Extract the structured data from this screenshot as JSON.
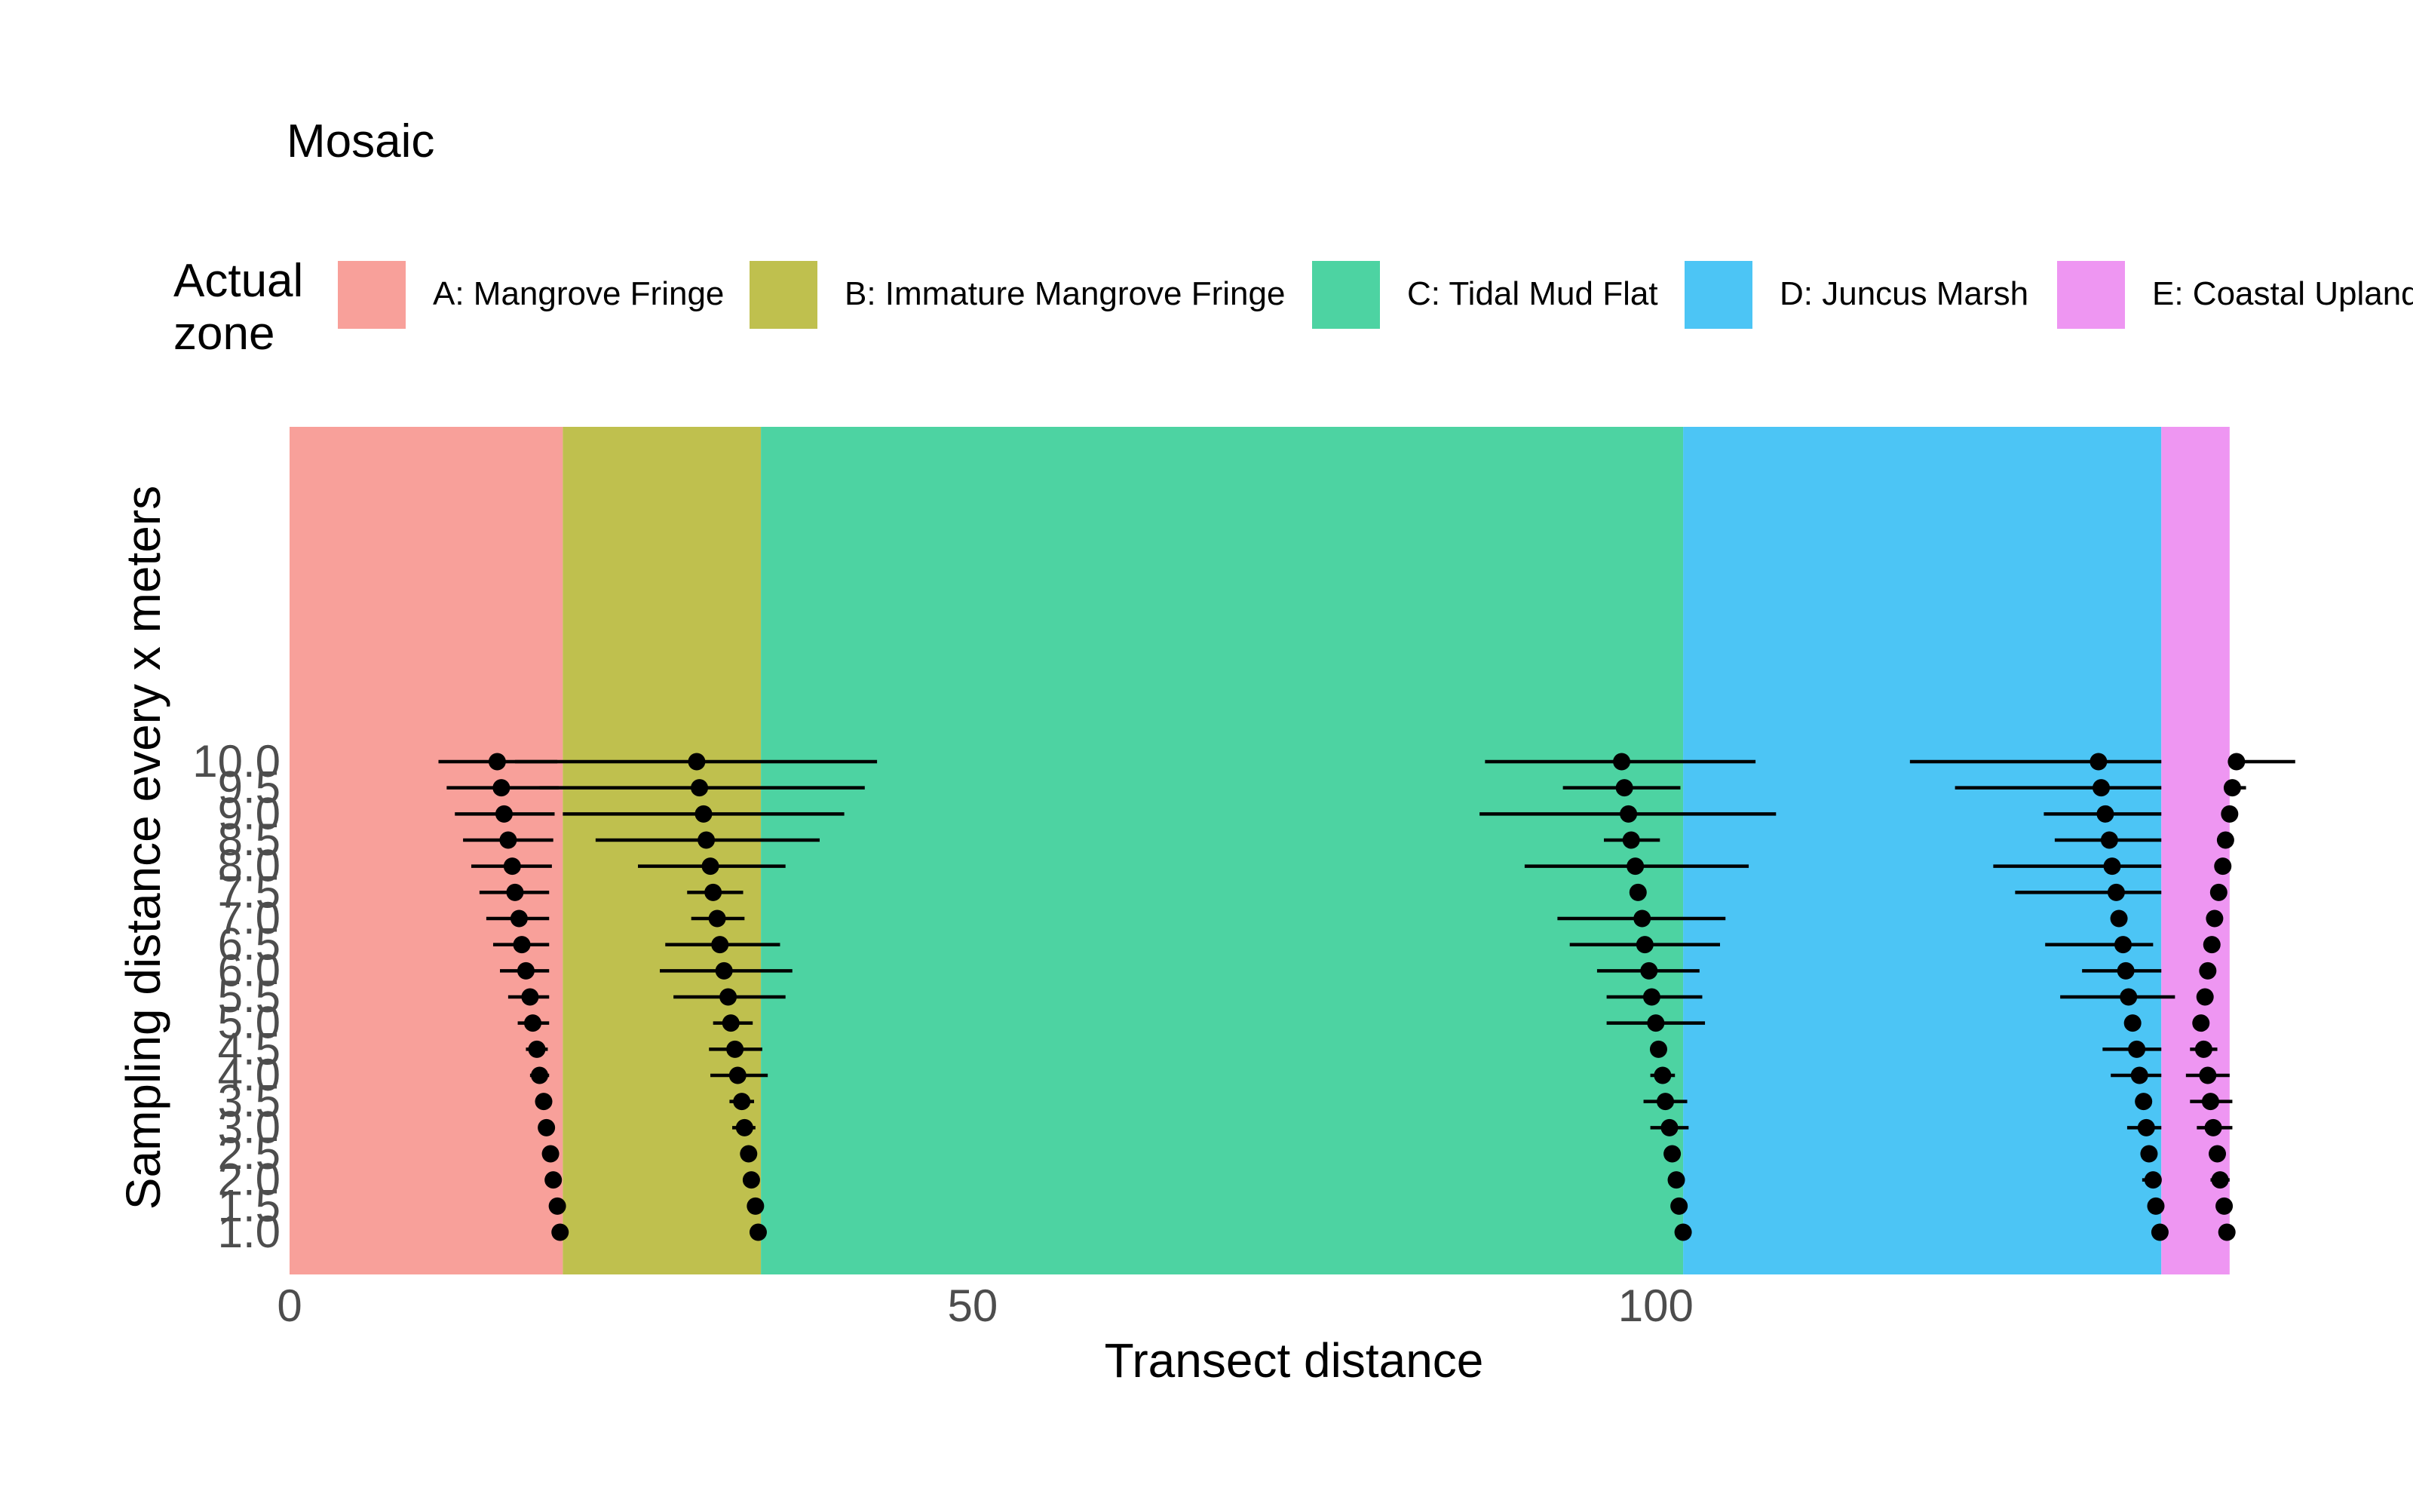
{
  "chart_data": {
    "type": "scatter",
    "title": "Mosaic",
    "xlabel": "Transect distance",
    "ylabel": "Sampling distance every x meters",
    "xlim": [
      0,
      143.5
    ],
    "x_ticks": [
      "0",
      "50",
      "100"
    ],
    "y_ticks": [
      "1.0",
      "1.5",
      "2.0",
      "2.5",
      "3.0",
      "3.5",
      "4.0",
      "4.5",
      "5.0",
      "5.5",
      "6.0",
      "6.5",
      "7.0",
      "7.5",
      "8.0",
      "8.5",
      "9.0",
      "9.5",
      "10.0"
    ],
    "legend": {
      "title": "Actual\nzone",
      "position": "top",
      "entries": [
        {
          "label": "A: Mangrove Fringe",
          "color": "#F8A09A",
          "start": 0,
          "end": 20
        },
        {
          "label": "B: Immature Mangrove Fringe",
          "color": "#BFC04E",
          "start": 20,
          "end": 34.5
        },
        {
          "label": "C: Tidal Mud Flat",
          "color": "#4DD3A2",
          "start": 34.5,
          "end": 102
        },
        {
          "label": "D: Juncus Marsh",
          "color": "#4CC5F5",
          "start": 102,
          "end": 137
        },
        {
          "label": "E: Coastal Upland",
          "color": "#EE96F2",
          "start": 137,
          "end": 142
        }
      ]
    },
    "grid": false,
    "series": [
      {
        "points": [
          {
            "y": 10.0,
            "x": 15.2,
            "lo": 10.9,
            "hi": 19.6
          },
          {
            "y": 9.5,
            "x": 15.5,
            "lo": 11.5,
            "hi": 19.7
          },
          {
            "y": 9.0,
            "x": 15.7,
            "lo": 12.1,
            "hi": 19.4
          },
          {
            "y": 8.5,
            "x": 16.0,
            "lo": 12.7,
            "hi": 19.3
          },
          {
            "y": 8.0,
            "x": 16.3,
            "lo": 13.3,
            "hi": 19.2
          },
          {
            "y": 7.5,
            "x": 16.5,
            "lo": 13.9,
            "hi": 19.0
          },
          {
            "y": 7.0,
            "x": 16.8,
            "lo": 14.4,
            "hi": 19.0
          },
          {
            "y": 6.5,
            "x": 17.0,
            "lo": 14.9,
            "hi": 19.0
          },
          {
            "y": 6.0,
            "x": 17.3,
            "lo": 15.4,
            "hi": 19.0
          },
          {
            "y": 5.5,
            "x": 17.6,
            "lo": 16.0,
            "hi": 19.0
          },
          {
            "y": 5.0,
            "x": 17.8,
            "lo": 16.7,
            "hi": 19.0
          },
          {
            "y": 4.5,
            "x": 18.1,
            "lo": 17.3,
            "hi": 18.9
          },
          {
            "y": 4.0,
            "x": 18.3,
            "lo": 17.6,
            "hi": 19.0
          },
          {
            "y": 3.5,
            "x": 18.6,
            "lo": null,
            "hi": null
          },
          {
            "y": 3.0,
            "x": 18.8,
            "lo": null,
            "hi": null
          },
          {
            "y": 2.5,
            "x": 19.1,
            "lo": null,
            "hi": null
          },
          {
            "y": 2.0,
            "x": 19.3,
            "lo": null,
            "hi": null
          },
          {
            "y": 1.5,
            "x": 19.6,
            "lo": null,
            "hi": null
          },
          {
            "y": 1.0,
            "x": 19.8,
            "lo": null,
            "hi": null
          }
        ]
      },
      {
        "points": [
          {
            "y": 10.0,
            "x": 29.8,
            "lo": 16.5,
            "hi": 43.0
          },
          {
            "y": 9.5,
            "x": 30.0,
            "lo": 18.3,
            "hi": 42.1
          },
          {
            "y": 9.0,
            "x": 30.3,
            "lo": 20.0,
            "hi": 40.6
          },
          {
            "y": 8.5,
            "x": 30.5,
            "lo": 22.4,
            "hi": 38.8
          },
          {
            "y": 8.0,
            "x": 30.8,
            "lo": 25.5,
            "hi": 36.3
          },
          {
            "y": 7.5,
            "x": 31.0,
            "lo": 29.1,
            "hi": 33.2
          },
          {
            "y": 7.0,
            "x": 31.3,
            "lo": 29.4,
            "hi": 33.3
          },
          {
            "y": 6.5,
            "x": 31.5,
            "lo": 27.5,
            "hi": 35.9
          },
          {
            "y": 6.0,
            "x": 31.8,
            "lo": 27.1,
            "hi": 36.8
          },
          {
            "y": 5.5,
            "x": 32.1,
            "lo": 28.1,
            "hi": 36.3
          },
          {
            "y": 5.0,
            "x": 32.3,
            "lo": 31.0,
            "hi": 33.9
          },
          {
            "y": 4.5,
            "x": 32.6,
            "lo": 30.7,
            "hi": 34.6
          },
          {
            "y": 4.0,
            "x": 32.8,
            "lo": 30.8,
            "hi": 35.0
          },
          {
            "y": 3.5,
            "x": 33.1,
            "lo": 32.2,
            "hi": 34.0
          },
          {
            "y": 3.0,
            "x": 33.3,
            "lo": 32.4,
            "hi": 34.1
          },
          {
            "y": 2.5,
            "x": 33.6,
            "lo": null,
            "hi": null
          },
          {
            "y": 2.0,
            "x": 33.8,
            "lo": null,
            "hi": null
          },
          {
            "y": 1.5,
            "x": 34.1,
            "lo": null,
            "hi": null
          },
          {
            "y": 1.0,
            "x": 34.3,
            "lo": null,
            "hi": null
          }
        ]
      },
      {
        "points": [
          {
            "y": 10.0,
            "x": 97.5,
            "lo": 87.5,
            "hi": 107.3
          },
          {
            "y": 9.5,
            "x": 97.7,
            "lo": 93.2,
            "hi": 101.8
          },
          {
            "y": 9.0,
            "x": 98.0,
            "lo": 87.1,
            "hi": 108.8
          },
          {
            "y": 8.5,
            "x": 98.2,
            "lo": 96.2,
            "hi": 100.3
          },
          {
            "y": 8.0,
            "x": 98.5,
            "lo": 90.4,
            "hi": 106.8
          },
          {
            "y": 7.5,
            "x": 98.7,
            "lo": null,
            "hi": null
          },
          {
            "y": 7.0,
            "x": 99.0,
            "lo": 92.8,
            "hi": 105.1
          },
          {
            "y": 6.5,
            "x": 99.2,
            "lo": 93.7,
            "hi": 104.7
          },
          {
            "y": 6.0,
            "x": 99.5,
            "lo": 95.7,
            "hi": 103.2
          },
          {
            "y": 5.5,
            "x": 99.7,
            "lo": 96.4,
            "hi": 103.4
          },
          {
            "y": 5.0,
            "x": 100.0,
            "lo": 96.4,
            "hi": 103.6
          },
          {
            "y": 4.5,
            "x": 100.2,
            "lo": null,
            "hi": null
          },
          {
            "y": 4.0,
            "x": 100.5,
            "lo": 99.6,
            "hi": 101.4
          },
          {
            "y": 3.5,
            "x": 100.7,
            "lo": 99.1,
            "hi": 102.3
          },
          {
            "y": 3.0,
            "x": 101.0,
            "lo": 99.6,
            "hi": 102.4
          },
          {
            "y": 2.5,
            "x": 101.2,
            "lo": null,
            "hi": null
          },
          {
            "y": 2.0,
            "x": 101.5,
            "lo": null,
            "hi": null
          },
          {
            "y": 1.5,
            "x": 101.7,
            "lo": null,
            "hi": null
          },
          {
            "y": 1.0,
            "x": 102.0,
            "lo": null,
            "hi": null
          }
        ]
      },
      {
        "points": [
          {
            "y": 10.0,
            "x": 132.4,
            "lo": 118.6,
            "hi": 137.0
          },
          {
            "y": 9.5,
            "x": 132.6,
            "lo": 121.9,
            "hi": 137.0
          },
          {
            "y": 9.0,
            "x": 132.9,
            "lo": 128.4,
            "hi": 137.0
          },
          {
            "y": 8.5,
            "x": 133.2,
            "lo": 129.2,
            "hi": 137.0
          },
          {
            "y": 8.0,
            "x": 133.4,
            "lo": 124.7,
            "hi": 137.0
          },
          {
            "y": 7.5,
            "x": 133.7,
            "lo": 126.3,
            "hi": 137.0
          },
          {
            "y": 7.0,
            "x": 133.9,
            "lo": null,
            "hi": null
          },
          {
            "y": 6.5,
            "x": 134.2,
            "lo": 128.5,
            "hi": 136.4
          },
          {
            "y": 6.0,
            "x": 134.4,
            "lo": 131.2,
            "hi": 137.0
          },
          {
            "y": 5.5,
            "x": 134.6,
            "lo": 129.6,
            "hi": 138.0
          },
          {
            "y": 5.0,
            "x": 134.9,
            "lo": null,
            "hi": null
          },
          {
            "y": 4.5,
            "x": 135.2,
            "lo": 132.7,
            "hi": 137.0
          },
          {
            "y": 4.0,
            "x": 135.4,
            "lo": 133.3,
            "hi": 137.0
          },
          {
            "y": 3.5,
            "x": 135.7,
            "lo": null,
            "hi": null
          },
          {
            "y": 3.0,
            "x": 135.9,
            "lo": 134.5,
            "hi": 137.0
          },
          {
            "y": 2.5,
            "x": 136.1,
            "lo": null,
            "hi": null
          },
          {
            "y": 2.0,
            "x": 136.4,
            "lo": 135.6,
            "hi": 137.0
          },
          {
            "y": 1.5,
            "x": 136.6,
            "lo": null,
            "hi": null
          },
          {
            "y": 1.0,
            "x": 136.9,
            "lo": null,
            "hi": null
          }
        ]
      },
      {
        "points": [
          {
            "y": 10.0,
            "x": 142.5,
            "lo": null,
            "hi": 146.8
          },
          {
            "y": 9.5,
            "x": 142.2,
            "lo": null,
            "hi": 143.2
          },
          {
            "y": 9.0,
            "x": 142.0,
            "lo": null,
            "hi": null
          },
          {
            "y": 8.5,
            "x": 141.7,
            "lo": null,
            "hi": null
          },
          {
            "y": 8.0,
            "x": 141.5,
            "lo": null,
            "hi": null
          },
          {
            "y": 7.5,
            "x": 141.2,
            "lo": null,
            "hi": null
          },
          {
            "y": 7.0,
            "x": 140.9,
            "lo": null,
            "hi": null
          },
          {
            "y": 6.5,
            "x": 140.7,
            "lo": null,
            "hi": null
          },
          {
            "y": 6.0,
            "x": 140.4,
            "lo": null,
            "hi": null
          },
          {
            "y": 5.5,
            "x": 140.2,
            "lo": null,
            "hi": null
          },
          {
            "y": 5.0,
            "x": 139.9,
            "lo": null,
            "hi": null
          },
          {
            "y": 4.5,
            "x": 140.1,
            "lo": 139.1,
            "hi": 141.1
          },
          {
            "y": 4.0,
            "x": 140.4,
            "lo": 138.8,
            "hi": 142.0
          },
          {
            "y": 3.5,
            "x": 140.6,
            "lo": 139.1,
            "hi": 142.2
          },
          {
            "y": 3.0,
            "x": 140.8,
            "lo": 139.6,
            "hi": 142.2
          },
          {
            "y": 2.5,
            "x": 141.1,
            "lo": null,
            "hi": null
          },
          {
            "y": 2.0,
            "x": 141.3,
            "lo": 140.6,
            "hi": 142.0
          },
          {
            "y": 1.5,
            "x": 141.6,
            "lo": null,
            "hi": null
          },
          {
            "y": 1.0,
            "x": 141.8,
            "lo": null,
            "hi": null
          }
        ]
      }
    ]
  }
}
